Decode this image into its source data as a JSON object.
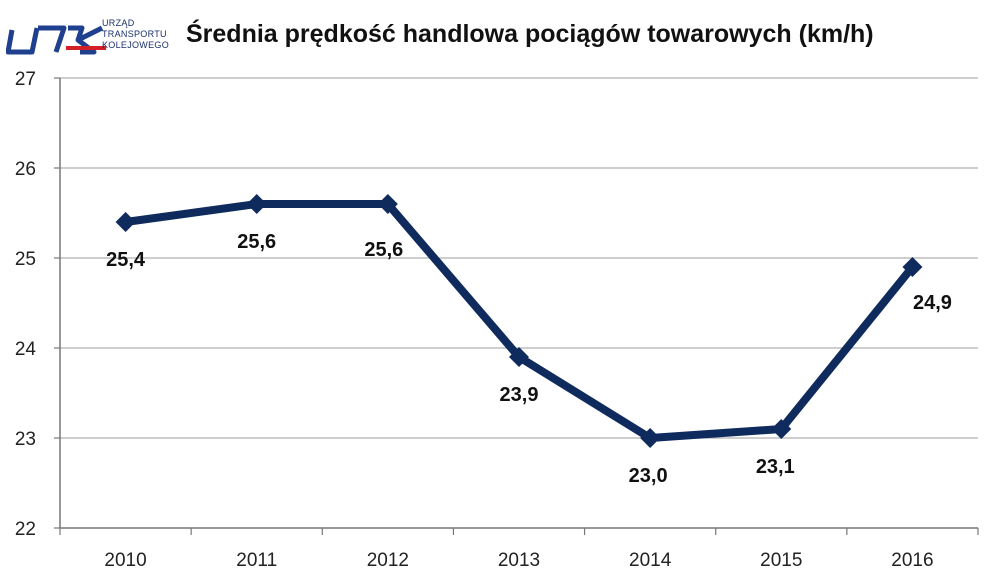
{
  "logo": {
    "line1": "URZĄD",
    "line2": "TRANSPORTU",
    "line3": "KOLEJOWEGO"
  },
  "chart_data": {
    "type": "line",
    "title": "Średnia prędkość handlowa pociągów towarowych (km/h)",
    "categories": [
      "2010",
      "2011",
      "2012",
      "2013",
      "2014",
      "2015",
      "2016"
    ],
    "values": [
      25.4,
      25.6,
      25.6,
      23.9,
      23.0,
      23.1,
      24.9
    ],
    "data_labels": [
      "25,4",
      "25,6",
      "25,6",
      "23,9",
      "23,0",
      "23,1",
      "24,9"
    ],
    "ylim": [
      22,
      27
    ],
    "yticks": [
      "22",
      "23",
      "24",
      "25",
      "26",
      "27"
    ],
    "grid": true,
    "xlabel": "",
    "ylabel": "",
    "line_color": "#0f2a5c",
    "grid_color": "#b0b0b0"
  }
}
